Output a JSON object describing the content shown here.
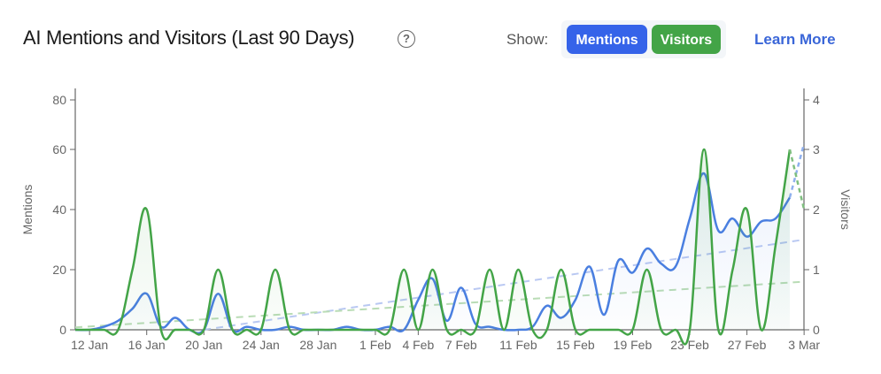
{
  "header": {
    "title": "AI Mentions and Visitors (Last 90 Days)",
    "help_icon": "question-circle-icon",
    "show_label": "Show:",
    "toggles": [
      {
        "label": "Mentions",
        "color": "#3563e9"
      },
      {
        "label": "Visitors",
        "color": "#43a447"
      }
    ],
    "learn_more": "Learn More"
  },
  "chart_data": {
    "type": "line",
    "ylabel": "Mentions",
    "y2label": "Visitors",
    "ylim": [
      0,
      80
    ],
    "y2lim": [
      0,
      4
    ],
    "yticks": [
      "0",
      "20",
      "40",
      "60",
      "80"
    ],
    "y2ticks": [
      "0",
      "1",
      "2",
      "3",
      "4"
    ],
    "xticks": [
      "12 Jan",
      "16 Jan",
      "20 Jan",
      "24 Jan",
      "28 Jan",
      "1 Feb",
      "4 Feb",
      "7 Feb",
      "11 Feb",
      "15 Feb",
      "19 Feb",
      "23 Feb",
      "27 Feb",
      "3 Mar"
    ],
    "x": [
      "11 Jan",
      "12 Jan",
      "13 Jan",
      "14 Jan",
      "15 Jan",
      "16 Jan",
      "17 Jan",
      "18 Jan",
      "19 Jan",
      "20 Jan",
      "21 Jan",
      "22 Jan",
      "23 Jan",
      "24 Jan",
      "25 Jan",
      "26 Jan",
      "27 Jan",
      "28 Jan",
      "29 Jan",
      "30 Jan",
      "31 Jan",
      "1 Feb",
      "2 Feb",
      "3 Feb",
      "4 Feb",
      "5 Feb",
      "6 Feb",
      "7 Feb",
      "8 Feb",
      "9 Feb",
      "10 Feb",
      "11 Feb",
      "12 Feb",
      "13 Feb",
      "14 Feb",
      "15 Feb",
      "16 Feb",
      "17 Feb",
      "18 Feb",
      "19 Feb",
      "20 Feb",
      "21 Feb",
      "22 Feb",
      "23 Feb",
      "24 Feb",
      "25 Feb",
      "26 Feb",
      "27 Feb",
      "28 Feb",
      "1 Mar",
      "2 Mar"
    ],
    "series": [
      {
        "name": "Mentions",
        "axis": "left",
        "color": "#4a7fe0",
        "values": [
          0,
          0,
          1,
          3,
          7,
          12,
          1,
          4,
          0,
          0,
          12,
          0,
          1,
          0,
          0,
          1,
          0,
          0,
          0,
          1,
          0,
          0,
          1,
          0,
          10,
          17,
          3,
          14,
          2,
          1,
          0,
          0,
          1,
          8,
          4,
          10,
          21,
          5,
          23,
          19,
          27,
          22,
          21,
          37,
          52,
          33,
          37,
          31,
          36,
          37,
          44
        ]
      },
      {
        "name": "Visitors",
        "axis": "right",
        "color": "#43a447",
        "values": [
          0,
          0,
          0,
          0,
          1,
          2,
          0,
          0,
          0,
          0,
          1,
          0,
          0,
          0,
          1,
          0,
          0,
          0,
          0,
          0,
          0,
          0,
          0,
          1,
          0,
          1,
          0,
          0,
          0,
          1,
          0,
          1,
          0,
          0,
          1,
          0,
          0,
          0,
          0,
          0,
          1,
          0,
          0,
          0,
          3,
          0,
          1,
          2,
          0,
          1.4,
          3
        ]
      }
    ],
    "projection": {
      "date": "3 Mar",
      "mentions": 62,
      "visitors": 2
    },
    "trends": [
      {
        "series": "Mentions",
        "from": {
          "date": "20 Jan",
          "value": 0
        },
        "to": {
          "date": "3 Mar",
          "value": 30
        }
      },
      {
        "series": "Visitors",
        "from": {
          "date": "11 Jan",
          "value": 0.04
        },
        "to": {
          "date": "3 Mar",
          "value": 0.8
        }
      }
    ],
    "grid": false,
    "legend": "none"
  }
}
